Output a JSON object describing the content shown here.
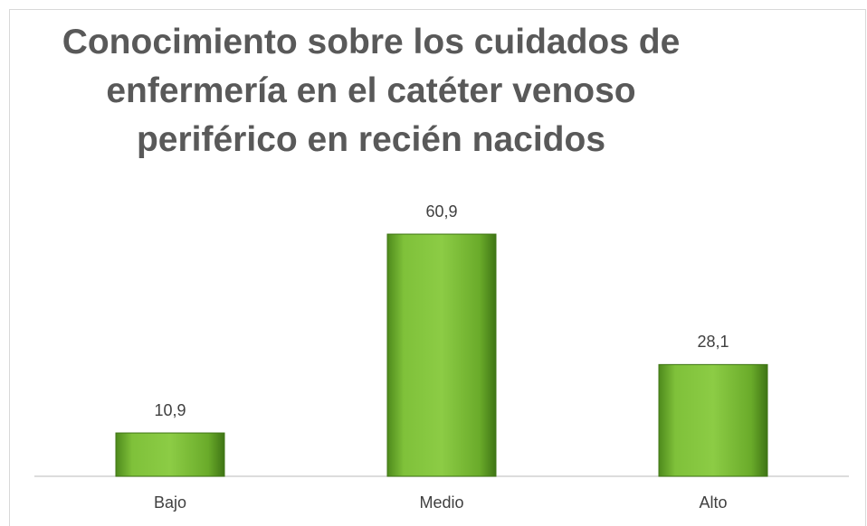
{
  "chart_data": {
    "type": "bar",
    "title": "Conocimiento sobre los cuidados de enfermería en el catéter venoso periférico en recién nacidos",
    "categories": [
      "Bajo",
      "Medio",
      "Alto"
    ],
    "values": [
      10.9,
      60.9,
      28.1
    ],
    "value_labels": [
      "10,9",
      "60,9",
      "28,1"
    ],
    "color": "#74b330"
  }
}
